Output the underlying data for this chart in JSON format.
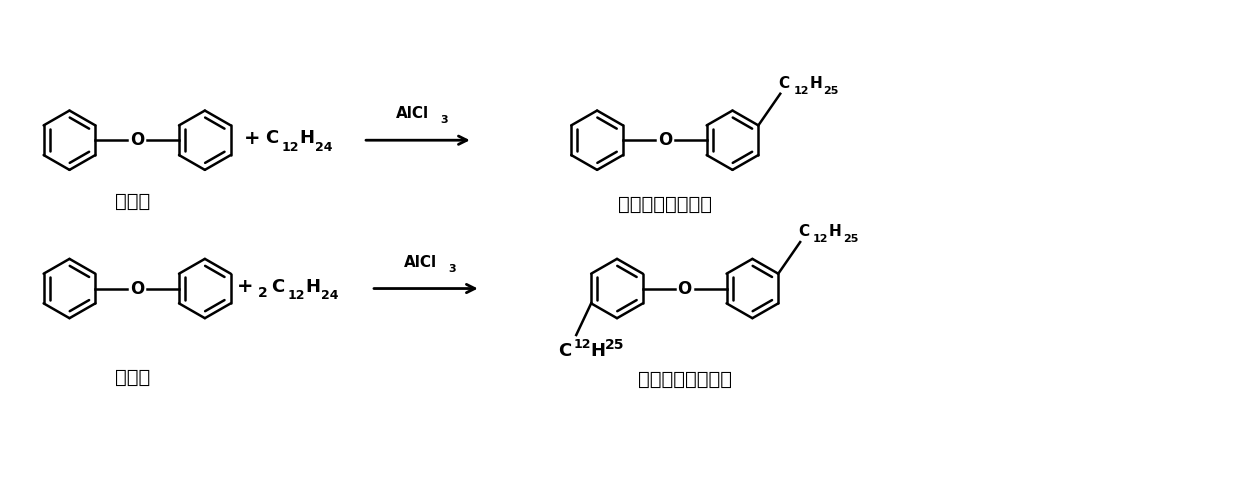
{
  "bg_color": "#ffffff",
  "text_color": "#000000",
  "figsize": [
    12.39,
    4.94
  ],
  "dpi": 100,
  "reaction1_label_left": "二苯醇",
  "reaction1_label_right": "单十二烷基二苯醇",
  "reaction2_label_left": "二苯醇",
  "reaction2_label_right": "双十二烷基二苯醇",
  "catalyst": "AlCl",
  "catalyst_sub": "3",
  "reagent1": "C",
  "reagent1_sub": "12",
  "reagent1_h": "H",
  "reagent1_hsub": "24",
  "reagent2_prefix": "+2C",
  "reagent2_sub": "12",
  "reagent2_h": "H",
  "reagent2_hsub": "24",
  "sub_c": "C",
  "sub_12": "12",
  "sub_h": "H",
  "sub_25": "25"
}
